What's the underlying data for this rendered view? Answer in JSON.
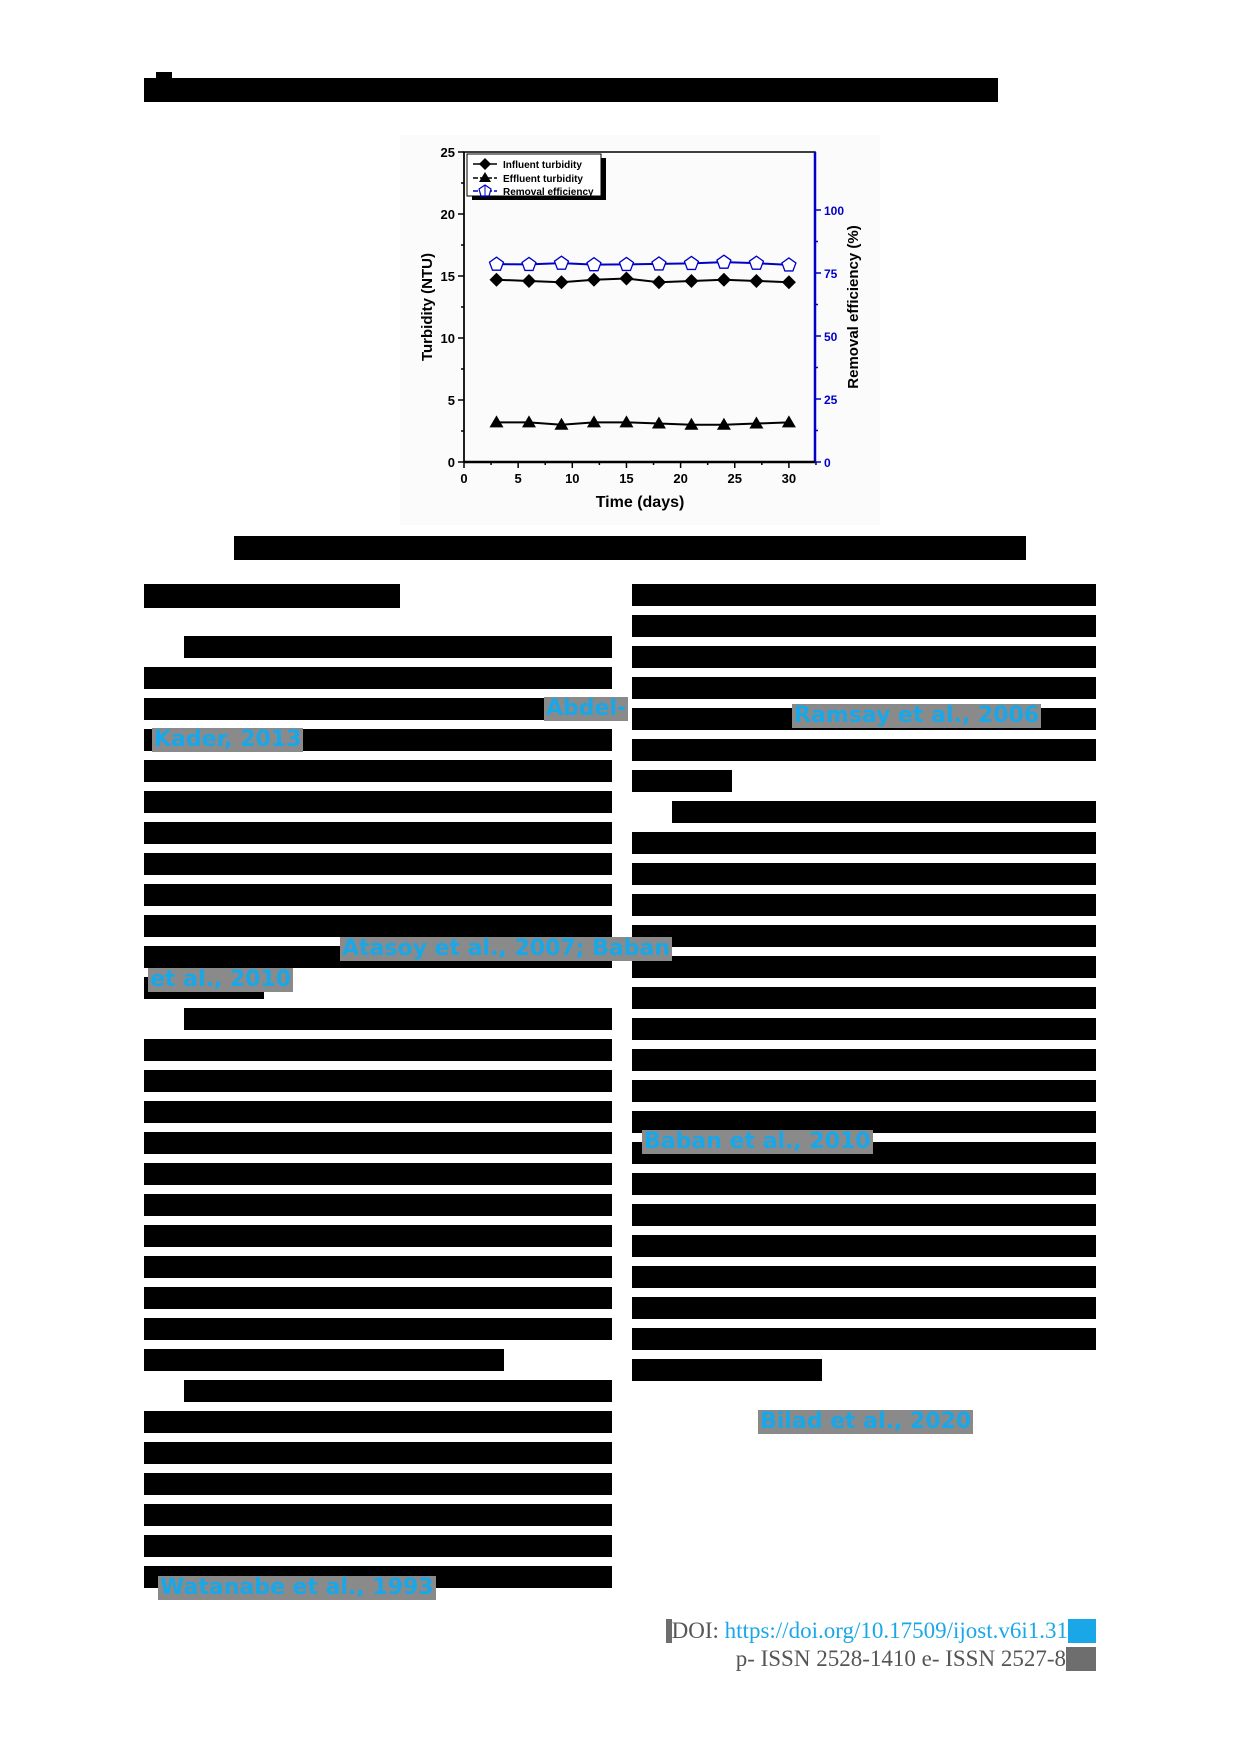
{
  "header": {
    "running_title": "[redacted running header text]"
  },
  "figure": {
    "caption": "[redacted figure caption]",
    "legend": {
      "influent": "Influent turbidity",
      "effluent": "Effluent turbidity",
      "removal": "Removal efficiency"
    },
    "axes": {
      "xlabel": "Time (days)",
      "ylabel_left": "Turbidity (NTU)",
      "ylabel_right": "Removal efficiency (%)",
      "xticks": [
        "0",
        "5",
        "10",
        "15",
        "20",
        "25",
        "30"
      ],
      "yticks_left": [
        "0",
        "5",
        "10",
        "15",
        "20",
        "25"
      ],
      "yticks_right": [
        "0",
        "25",
        "50",
        "75",
        "100"
      ]
    },
    "colors": {
      "primary": "#000000",
      "secondary_axis": "#0000c8"
    }
  },
  "chart_data": {
    "type": "line",
    "title": "",
    "xlabel": "Time (days)",
    "ylabel": "Turbidity (NTU)",
    "y2label": "Removal efficiency (%)",
    "xlim": [
      0,
      32.5
    ],
    "ylim": [
      0,
      25
    ],
    "y2lim": [
      0,
      110
    ],
    "grid": false,
    "legend_position": "upper left",
    "x": [
      3,
      6,
      9,
      12,
      15,
      18,
      21,
      24,
      27,
      30
    ],
    "series": [
      {
        "name": "Influent turbidity",
        "axis": "left",
        "marker": "diamond",
        "color": "#000000",
        "values": [
          14.7,
          14.6,
          14.5,
          14.7,
          14.8,
          14.5,
          14.6,
          14.7,
          14.6,
          14.5
        ]
      },
      {
        "name": "Effluent turbidity",
        "axis": "left",
        "marker": "triangle",
        "color": "#000000",
        "values": [
          3.2,
          3.2,
          3.0,
          3.2,
          3.2,
          3.1,
          3.0,
          3.0,
          3.1,
          3.2
        ]
      },
      {
        "name": "Removal efficiency",
        "axis": "right",
        "marker": "open-pentagon",
        "color": "#0000c8",
        "values": [
          78.5,
          78.4,
          78.9,
          78.3,
          78.4,
          78.6,
          78.8,
          79.3,
          78.9,
          78.2
        ]
      }
    ]
  },
  "body": {
    "left_heading": "[redacted section heading]",
    "citations": {
      "c1a": "Abdel-",
      "c1b": "Kader, 2013",
      "c2a": "Atasoy et al., 2007; Baban",
      "c2b": "et al., 2010",
      "c3": "Watanabe et al., 1993",
      "c4": "Ramsay et al., 2006",
      "c5": "Baban et al., 2010",
      "c6": "Bilad et al., 2020"
    }
  },
  "footer": {
    "doi_label": "DOI:",
    "doi_link": "https://doi.org/10.17509/ijost.v6i1.31",
    "issn": "p- ISSN 2528-1410 e- ISSN 2527-8"
  }
}
